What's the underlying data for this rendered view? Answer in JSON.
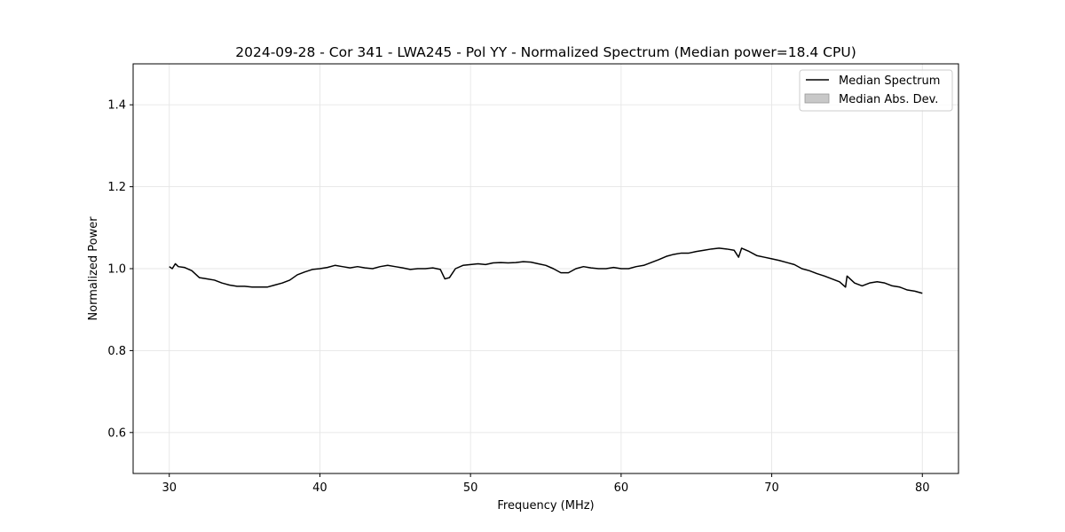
{
  "chart_data": {
    "type": "line",
    "title": "2024-09-28 - Cor 341 - LWA245 - Pol YY - Normalized Spectrum (Median power=18.4 CPU)",
    "xlabel": "Frequency (MHz)",
    "ylabel": "Normalized Power",
    "xlim": [
      27.6,
      82.4
    ],
    "ylim": [
      0.5,
      1.5
    ],
    "xticks": [
      30,
      40,
      50,
      60,
      70,
      80
    ],
    "yticks": [
      0.6,
      0.8,
      1.0,
      1.2,
      1.4
    ],
    "xtick_labels": [
      "30",
      "40",
      "50",
      "60",
      "70",
      "80"
    ],
    "ytick_labels": [
      "0.6",
      "0.8",
      "1.0",
      "1.2",
      "1.4"
    ],
    "grid": true,
    "legend_position": "top-right",
    "legend": [
      {
        "label": "Median Spectrum",
        "kind": "line",
        "color": "#000000"
      },
      {
        "label": "Median Abs. Dev.",
        "kind": "patch",
        "color": "#c8c8c8"
      }
    ],
    "series": [
      {
        "name": "Median Spectrum",
        "color": "#000000",
        "x": [
          30,
          30.2,
          30.4,
          30.6,
          31,
          31.5,
          32,
          32.5,
          33,
          33.5,
          34,
          34.5,
          35,
          35.5,
          36,
          36.5,
          37,
          37.5,
          38,
          38.5,
          39,
          39.5,
          40,
          40.5,
          41,
          41.5,
          42,
          42.5,
          43,
          43.5,
          44,
          44.5,
          45,
          45.5,
          46,
          46.5,
          47,
          47.5,
          48,
          48.3,
          48.6,
          49,
          49.5,
          50,
          50.5,
          51,
          51.5,
          52,
          52.5,
          53,
          53.5,
          54,
          54.5,
          55,
          55.5,
          56,
          56.5,
          57,
          57.5,
          58,
          58.5,
          59,
          59.5,
          60,
          60.5,
          61,
          61.5,
          62,
          62.5,
          63,
          63.5,
          64,
          64.5,
          65,
          65.5,
          66,
          66.5,
          67,
          67.5,
          67.8,
          68,
          68.5,
          69,
          69.5,
          70,
          70.5,
          71,
          71.5,
          72,
          72.5,
          73,
          73.5,
          74,
          74.5,
          74.9,
          75,
          75.5,
          76,
          76.5,
          77,
          77.5,
          78,
          78.5,
          79,
          79.5,
          80
        ],
        "values": [
          1.005,
          1.0,
          1.012,
          1.005,
          1.003,
          0.995,
          0.978,
          0.975,
          0.972,
          0.965,
          0.96,
          0.957,
          0.957,
          0.955,
          0.955,
          0.955,
          0.96,
          0.965,
          0.972,
          0.985,
          0.992,
          0.998,
          1.0,
          1.003,
          1.008,
          1.005,
          1.002,
          1.005,
          1.002,
          1.0,
          1.005,
          1.008,
          1.005,
          1.002,
          0.998,
          1.0,
          1.0,
          1.002,
          0.998,
          0.975,
          0.978,
          1.0,
          1.008,
          1.01,
          1.012,
          1.01,
          1.014,
          1.015,
          1.014,
          1.015,
          1.017,
          1.016,
          1.012,
          1.008,
          1.0,
          0.99,
          0.99,
          1.0,
          1.005,
          1.002,
          1.0,
          1.0,
          1.003,
          1.0,
          1.0,
          1.005,
          1.008,
          1.015,
          1.022,
          1.03,
          1.035,
          1.038,
          1.038,
          1.042,
          1.045,
          1.048,
          1.05,
          1.048,
          1.045,
          1.028,
          1.05,
          1.042,
          1.032,
          1.028,
          1.024,
          1.02,
          1.015,
          1.01,
          1.0,
          0.995,
          0.988,
          0.982,
          0.975,
          0.968,
          0.955,
          0.982,
          0.965,
          0.958,
          0.965,
          0.968,
          0.965,
          0.958,
          0.955,
          0.948,
          0.945,
          0.94
        ]
      }
    ]
  }
}
